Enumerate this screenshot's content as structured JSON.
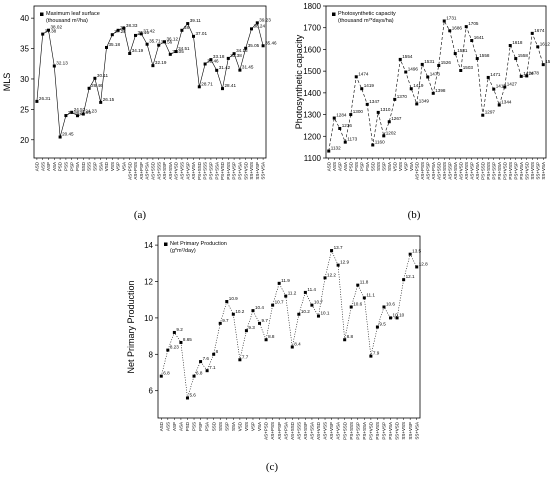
{
  "chart_data": [
    {
      "type": "line",
      "panel": "(a)",
      "y_label": "MLS",
      "line_style": "solid",
      "categories": [
        "ASD",
        "ASS",
        "ASP",
        "ASA",
        "PSD",
        "PSS",
        "PSP",
        "PSA",
        "SSD",
        "SSS",
        "SSP",
        "SSA",
        "VSD",
        "VSS",
        "VSP",
        "VSA",
        "AS+PSD",
        "AS+PSS",
        "AS+PSP",
        "AS+PSA",
        "AS+SSD",
        "AS+SSS",
        "AS+SSP",
        "AS+SSA",
        "AS+VSD",
        "AS+VSS",
        "AS+VSP",
        "AS+VSA",
        "PS+SSD",
        "PS+SSS",
        "PS+SSP",
        "PS+SSA",
        "PS+VSD",
        "PS+VSS",
        "PS+VSP",
        "PS+VSA",
        "SS+VSD",
        "SS+VSS",
        "SS+VSP",
        "SS+VSA"
      ],
      "series": [
        {
          "name": "Maximum leaf surface (thousand m²/ha)",
          "color": "#000000",
          "values": [
            26.31,
            37.38,
            38.02,
            32.13,
            20.45,
            23.98,
            24.52,
            23.96,
            24.23,
            28.46,
            30.11,
            26.15,
            35.18,
            37.28,
            38,
            38.33,
            34.19,
            37.16,
            37.42,
            35.71,
            32.19,
            35.56,
            36.12,
            34.05,
            34.51,
            38,
            39.11,
            37.01,
            28.71,
            32.46,
            33.18,
            31.42,
            28.41,
            33.38,
            34.16,
            31.45,
            35.05,
            38.24,
            39.23,
            35.46
          ]
        }
      ],
      "ylim": [
        17,
        42
      ],
      "yticks": [
        20,
        25,
        30,
        35,
        40
      ]
    },
    {
      "type": "line",
      "panel": "(b)",
      "y_label": "Photosynthetic capacity",
      "line_style": "dashed",
      "categories": [
        "ASD",
        "ASS",
        "ASP",
        "ASA",
        "PSD",
        "PSS",
        "PSP",
        "PSA",
        "SSD",
        "SSS",
        "SSP",
        "SSA",
        "VSD",
        "VSS",
        "VSP",
        "VSA",
        "AS+PSD",
        "AS+PSS",
        "AS+PSP",
        "AS+PSA",
        "AS+SSD",
        "AS+SSS",
        "AS+SSP",
        "AS+SSA",
        "AS+VSD",
        "AS+VSS",
        "AS+VSP",
        "AS+VSA",
        "PS+SSD",
        "PS+SSS",
        "PS+SSP",
        "PS+SSA",
        "PS+VSD",
        "PS+VSS",
        "PS+VSP",
        "PS+VSA",
        "SS+VSD",
        "SS+VSS",
        "SS+VSP",
        "SS+VSA"
      ],
      "series": [
        {
          "name": "Photosynthetic capacity (thousand m²*days/ha)",
          "color": "#000000",
          "values": [
            1132,
            1284,
            1236,
            1173,
            1300,
            1474,
            1419,
            1347,
            1160,
            1310,
            1202,
            1267,
            1370,
            1554,
            1496,
            1419,
            1349,
            1531,
            1473,
            1398,
            1526,
            1731,
            1686,
            1581,
            1503,
            1705,
            1641,
            1558,
            1297,
            1471,
            1417,
            1344,
            1427,
            1618,
            1558,
            1476,
            1478,
            1674,
            1612,
            1530
          ]
        }
      ],
      "ylim": [
        1100,
        1800
      ],
      "yticks": [
        1100,
        1200,
        1300,
        1400,
        1500,
        1600,
        1700,
        1800
      ]
    },
    {
      "type": "line",
      "panel": "(c)",
      "y_label": "Net Primary Production",
      "line_style": "dotted",
      "categories": [
        "ASD",
        "ASS",
        "ASP",
        "ASA",
        "PSD",
        "PSS",
        "PSP",
        "PSA",
        "SSD",
        "SSS",
        "SSP",
        "SSA",
        "VSD",
        "VSS",
        "VSP",
        "VSA",
        "AS+PSD",
        "AS+PSS",
        "AS+PSP",
        "AS+PSA",
        "AS+SSD",
        "AS+SSS",
        "AS+SSP",
        "AS+SSA",
        "AS+VSD",
        "AS+VSS",
        "AS+VSP",
        "AS+VSA",
        "PS+SSD",
        "PS+SSS",
        "PS+SSP",
        "PS+SSA",
        "PS+VSD",
        "PS+VSS",
        "PS+VSP",
        "PS+VSA",
        "SS+VSD",
        "SS+VSS",
        "SS+VSP",
        "SS+VSA"
      ],
      "series": [
        {
          "name": "Net Primary Production (g*m²/day)",
          "color": "#000000",
          "values": [
            6.8,
            8.23,
            9.2,
            8.65,
            5.6,
            6.8,
            7.6,
            7.1,
            8,
            9.7,
            10.9,
            10.2,
            7.7,
            9.3,
            10.4,
            9.7,
            8.8,
            10.7,
            11.9,
            11.2,
            8.4,
            10.2,
            11.4,
            10.7,
            10.1,
            12.2,
            13.7,
            12.9,
            8.8,
            10.6,
            11.8,
            11.1,
            7.9,
            9.5,
            10.6,
            10,
            10,
            12.1,
            13.5,
            12.8
          ]
        }
      ],
      "ylim": [
        4.5,
        14.5
      ],
      "yticks": [
        6,
        8,
        10,
        12,
        14
      ]
    }
  ]
}
